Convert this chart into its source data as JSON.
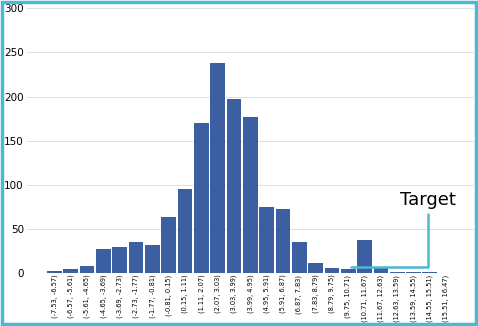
{
  "categories": [
    "(-7.53, -6.57)",
    "(-6.57, -5.61)",
    "(-5.61, -4.65)",
    "(-4.65, -3.69)",
    "(-3.69, -2.73)",
    "(-2.73, -1.77)",
    "(-1.77, -0.81)",
    "(-0.81, 0.15)",
    "(0.15, 1.11)",
    "(1.11, 2.07)",
    "(2.07, 3.03)",
    "(3.03, 3.99)",
    "(3.99, 4.95)",
    "(4.95, 5.91)",
    "(5.91, 6.87)",
    "(6.87, 7.83)",
    "(7.83, 8.79)",
    "(8.79, 9.75)",
    "(9.75, 10.71)",
    "(10.71, 11.67)",
    "(11.67, 12.63)",
    "(12.63, 13.59)",
    "(13.59, 14.55)",
    "(14.55, 15.51)",
    "(15.51, 16.47)"
  ],
  "values": [
    2,
    5,
    8,
    27,
    30,
    35,
    32,
    64,
    95,
    170,
    238,
    197,
    177,
    75,
    73,
    35,
    12,
    6,
    5,
    38,
    7,
    1,
    1,
    1,
    0
  ],
  "bar_color": "#3B5FA0",
  "target_bar_index": 18,
  "ylim": [
    0,
    300
  ],
  "yticks": [
    0,
    50,
    100,
    150,
    200,
    250,
    300
  ],
  "annotation_text": "Target",
  "annotation_fontsize": 13,
  "annotation_color": "black",
  "arrow_color": "#4db8d4",
  "background_color": "#ffffff",
  "border_color": "#4db8d4",
  "figsize": [
    4.78,
    3.26
  ],
  "dpi": 100
}
